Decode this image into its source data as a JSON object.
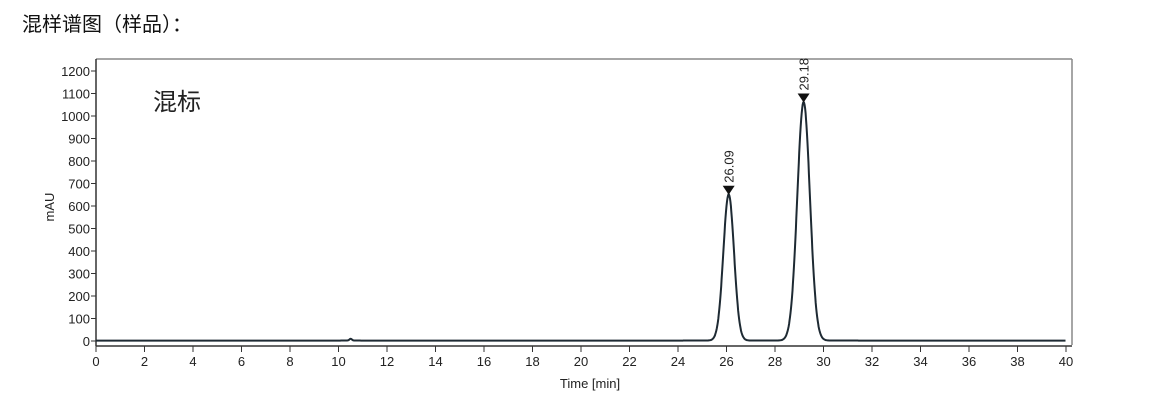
{
  "document": {
    "heading": "混样谱图（样品）："
  },
  "chart_data": {
    "type": "line",
    "annotation": "混标",
    "xlabel": "Time [min]",
    "ylabel": "mAU",
    "xlim": [
      0,
      40
    ],
    "ylim": [
      0,
      1250
    ],
    "xticks": [
      0,
      2,
      4,
      6,
      8,
      10,
      12,
      14,
      16,
      18,
      20,
      22,
      24,
      26,
      28,
      30,
      32,
      34,
      36,
      38,
      40
    ],
    "yticks": [
      0,
      100,
      200,
      300,
      400,
      500,
      600,
      700,
      800,
      900,
      1000,
      1100,
      1200
    ],
    "grid": false,
    "line_color": "#1e2a33",
    "baseline": 2,
    "peaks": [
      {
        "label": "26.09",
        "time": 26.09,
        "height": 650,
        "width_sigma": 0.22
      },
      {
        "label": "29.18",
        "time": 29.18,
        "height": 1060,
        "width_sigma": 0.26
      }
    ]
  }
}
